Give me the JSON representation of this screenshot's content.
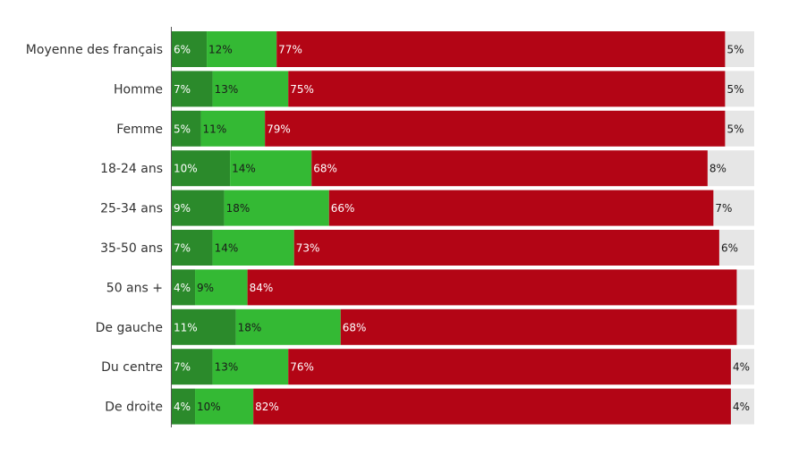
{
  "chart_data": {
    "type": "bar",
    "orientation": "horizontal",
    "stacked": true,
    "normalized": true,
    "categories": [
      "Moyenne des français",
      "Homme",
      "Femme",
      "18-24 ans",
      "25-34 ans",
      "35-50 ans",
      "50 ans +",
      "De gauche",
      "Du centre",
      "De droite"
    ],
    "series": [
      {
        "color": "#2b8a2b",
        "text_color": "#ffffff",
        "values": [
          6,
          7,
          5,
          10,
          9,
          7,
          4,
          11,
          7,
          4
        ],
        "labels": [
          "6%",
          "7%",
          "5%",
          "10%",
          "9%",
          "7%",
          "4%",
          "11%",
          "7%",
          "4%"
        ]
      },
      {
        "color": "#34b934",
        "text_color": "#1a1a1a",
        "values": [
          12,
          13,
          11,
          14,
          18,
          14,
          9,
          18,
          13,
          10
        ],
        "labels": [
          "12%",
          "13%",
          "11%",
          "14%",
          "18%",
          "14%",
          "9%",
          "18%",
          "13%",
          "10%"
        ]
      },
      {
        "color": "#b30515",
        "text_color": "#ffffff",
        "values": [
          77,
          75,
          79,
          68,
          66,
          73,
          84,
          68,
          76,
          82
        ],
        "labels": [
          "77%",
          "75%",
          "79%",
          "68%",
          "66%",
          "73%",
          "84%",
          "68%",
          "76%",
          "82%"
        ]
      },
      {
        "color": "#e6e6e6",
        "text_color": "#1a1a1a",
        "values": [
          5,
          5,
          5,
          8,
          7,
          6,
          3,
          3,
          4,
          4
        ],
        "labels": [
          "5%",
          "5%",
          "5%",
          "8%",
          "7%",
          "6%",
          "",
          "",
          "4%",
          "4%"
        ]
      }
    ],
    "xlim": [
      0,
      100
    ],
    "grid": false,
    "legend": "none",
    "title": "",
    "xlabel": "",
    "ylabel": ""
  }
}
